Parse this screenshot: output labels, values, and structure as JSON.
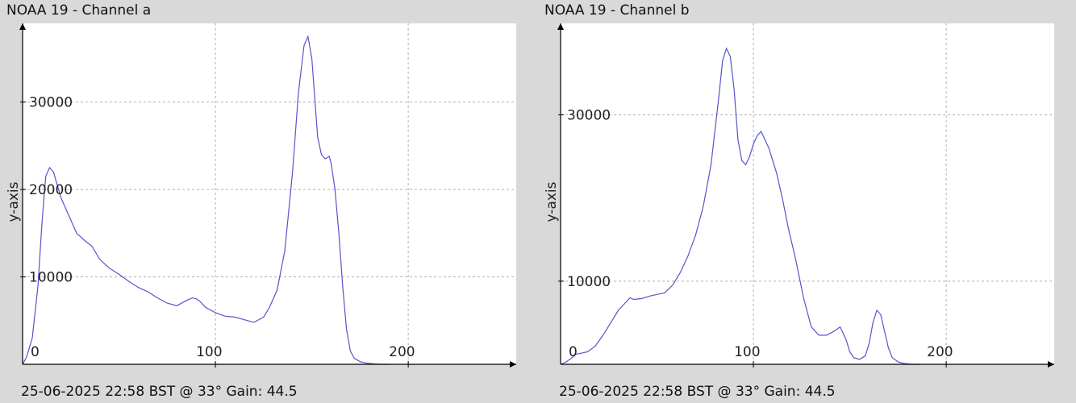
{
  "footer": "25-06-2025 22:58 BST @ 33° Gain: 44.5",
  "colors": {
    "background": "#d9d9d9",
    "plot_bg": "#ffffff",
    "series": "#5555cc",
    "grid": "#b0b0b0",
    "axis": "#000000"
  },
  "chart_data": [
    {
      "type": "line",
      "title": "NOAA 19 - Channel a",
      "xlabel": "",
      "ylabel": "y-axis",
      "xlim": [
        0,
        256
      ],
      "ylim": [
        0,
        39000
      ],
      "xticks": [
        0,
        100,
        200
      ],
      "yticks": [
        10000,
        20000,
        30000
      ],
      "grid": true,
      "series": [
        {
          "x": [
            0,
            2,
            5,
            8,
            10,
            12,
            14,
            16,
            18,
            20,
            22,
            25,
            28,
            32,
            36,
            40,
            45,
            50,
            55,
            60,
            65,
            70,
            75,
            80,
            85,
            88,
            90,
            92,
            95,
            100,
            105,
            110,
            115,
            120,
            125,
            128,
            132,
            136,
            140,
            143,
            146,
            148,
            150,
            152,
            153,
            155,
            157,
            159,
            160,
            162,
            164,
            166,
            168,
            170,
            172,
            175,
            178,
            182,
            186,
            190
          ],
          "y": [
            0,
            800,
            3000,
            9000,
            16000,
            21500,
            22500,
            22000,
            20500,
            19000,
            18000,
            16500,
            15000,
            14200,
            13500,
            12000,
            11000,
            10300,
            9500,
            8800,
            8300,
            7600,
            7000,
            6700,
            7300,
            7600,
            7500,
            7200,
            6500,
            5900,
            5500,
            5400,
            5100,
            4800,
            5400,
            6500,
            8500,
            13000,
            22000,
            31000,
            36500,
            37500,
            35000,
            29000,
            26000,
            24000,
            23500,
            23800,
            23000,
            20000,
            15000,
            9000,
            4000,
            1500,
            700,
            300,
            150,
            50,
            0,
            0
          ]
        }
      ]
    },
    {
      "type": "line",
      "title": "NOAA 19 - Channel b",
      "xlabel": "",
      "ylabel": "y-axis",
      "xlim": [
        0,
        256
      ],
      "ylim": [
        0,
        41000
      ],
      "xticks": [
        0,
        100,
        200
      ],
      "yticks": [
        10000,
        30000
      ],
      "grid": true,
      "series": [
        {
          "x": [
            0,
            3,
            6,
            8,
            10,
            14,
            18,
            22,
            26,
            30,
            34,
            36,
            38,
            42,
            46,
            50,
            54,
            58,
            62,
            66,
            70,
            74,
            78,
            82,
            84,
            86,
            88,
            90,
            92,
            94,
            96,
            98,
            100,
            102,
            104,
            106,
            108,
            110,
            112,
            115,
            118,
            122,
            126,
            130,
            134,
            138,
            142,
            145,
            148,
            150,
            152,
            155,
            158,
            160,
            162,
            164,
            166,
            168,
            170,
            172,
            175,
            178,
            182,
            186
          ],
          "y": [
            0,
            300,
            800,
            1200,
            1300,
            1500,
            2200,
            3500,
            5000,
            6500,
            7500,
            8000,
            7800,
            7900,
            8200,
            8400,
            8600,
            9500,
            11000,
            13000,
            15500,
            19000,
            24000,
            32000,
            36500,
            38000,
            37000,
            33000,
            27000,
            24500,
            24000,
            25000,
            26500,
            27500,
            28000,
            27000,
            26000,
            24500,
            23000,
            20000,
            16500,
            12500,
            8000,
            4500,
            3500,
            3500,
            4000,
            4500,
            3000,
            1500,
            800,
            600,
            1000,
            2500,
            5000,
            6500,
            6000,
            4000,
            2000,
            800,
            300,
            100,
            0,
            0
          ]
        }
      ]
    }
  ]
}
